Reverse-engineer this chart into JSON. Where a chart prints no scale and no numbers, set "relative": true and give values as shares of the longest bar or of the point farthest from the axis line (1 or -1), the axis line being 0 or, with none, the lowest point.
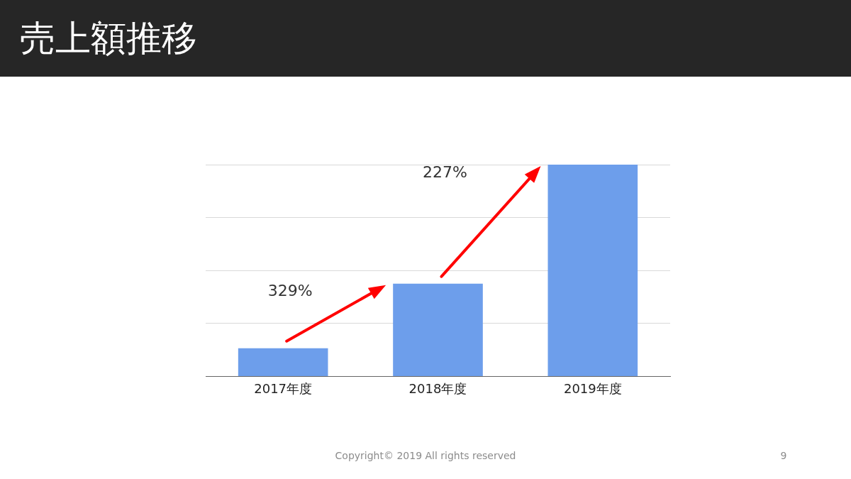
{
  "chart_data": {
    "type": "bar",
    "title": "売上額推移",
    "categories": [
      "2017年度",
      "2018年度",
      "2019年度"
    ],
    "values": [
      0.133,
      0.438,
      1
    ],
    "color": "#6d9eeb",
    "relative": true,
    "grid": "y",
    "legend": false,
    "annotations": [
      "329%",
      "227%",
      "Copyright© 2019 All rights reserved",
      "9"
    ]
  }
}
